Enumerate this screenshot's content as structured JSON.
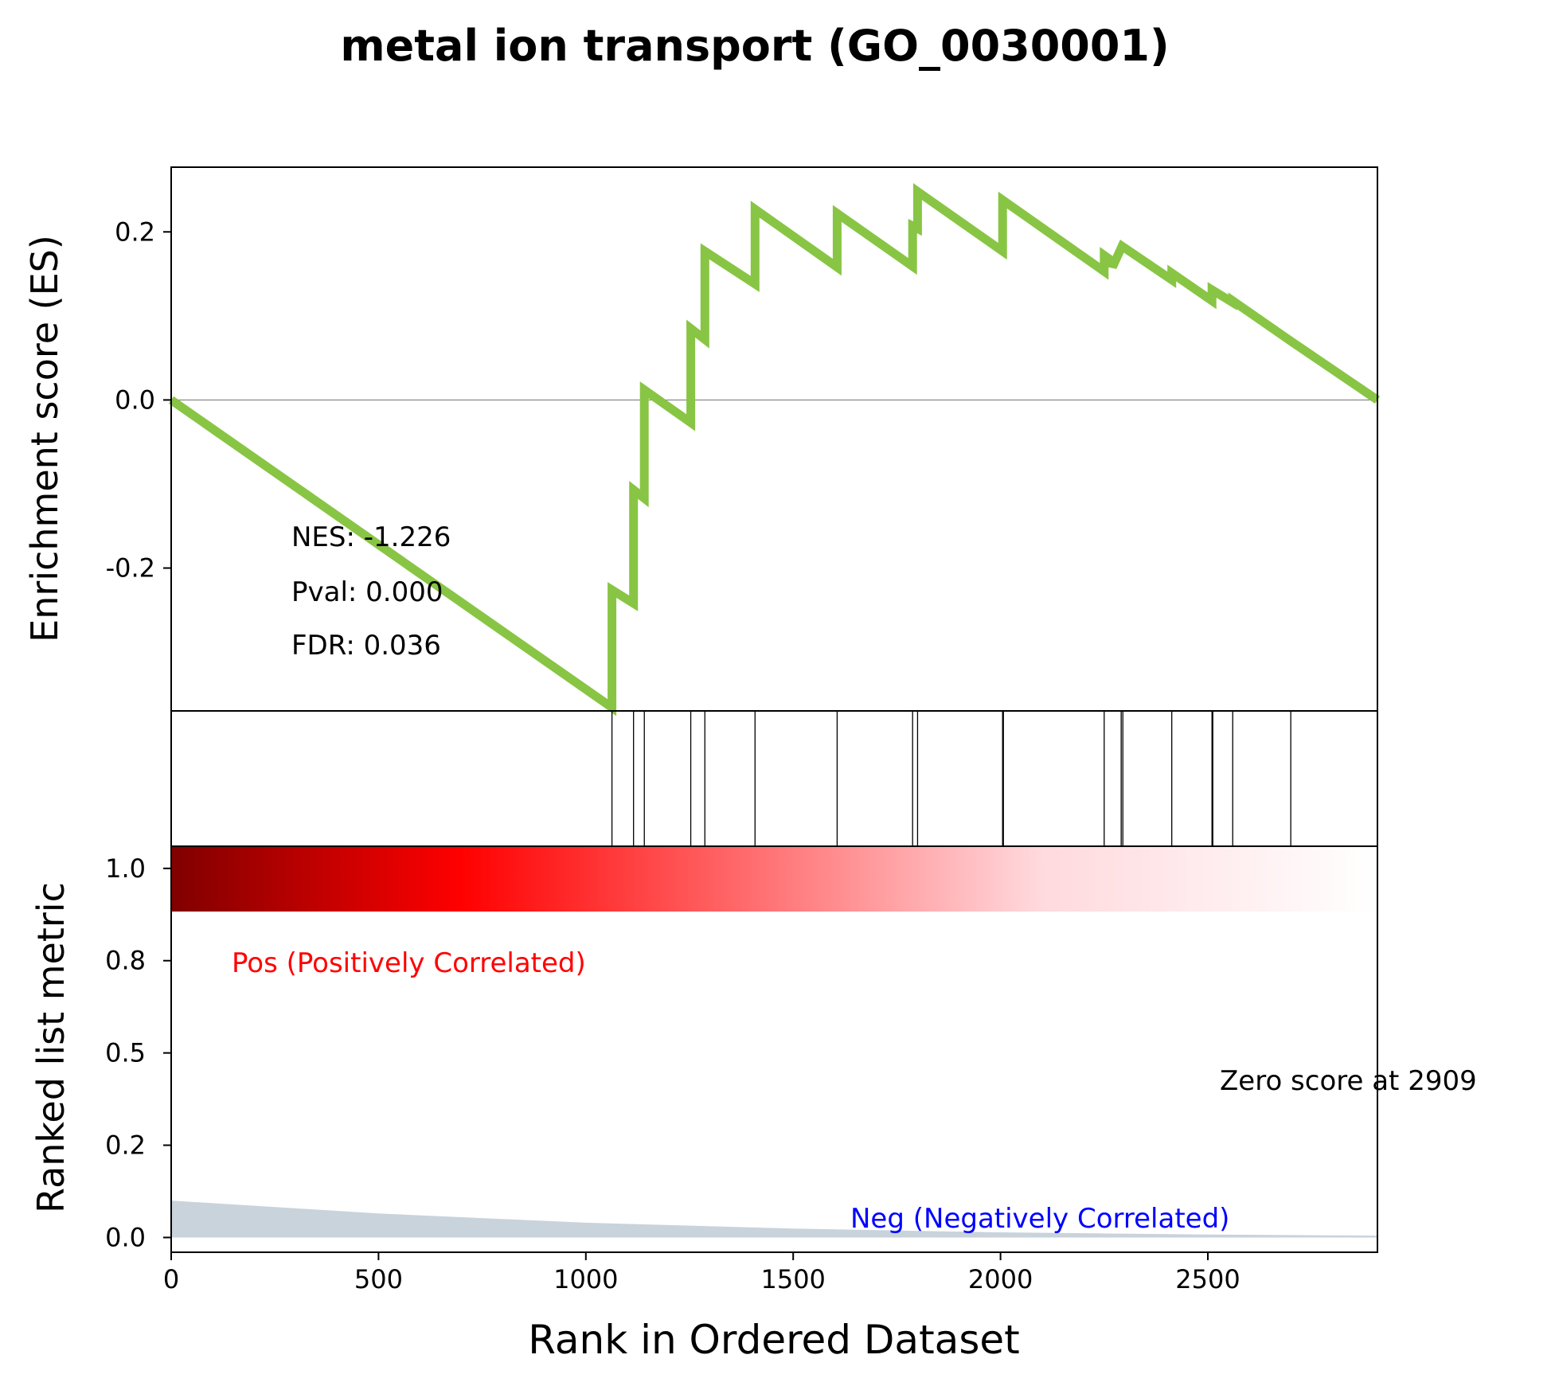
{
  "colors": {
    "es_line": "#88C544",
    "zero_line": "#808080",
    "hit_line": "#000000",
    "pos_label": "#FF0000",
    "neg_label": "#0000FF",
    "metric_fill": "#C9D3DB",
    "heat_dark": "#800000",
    "heat_red": "#FF0000",
    "heat_white": "#FFFFFF"
  },
  "chart_data": {
    "type": "line",
    "title": "metal ion transport (GO_0030001)",
    "xlabel": "Rank in Ordered Dataset",
    "xlim": [
      0,
      2909
    ],
    "xticks": [
      "0",
      "500",
      "1000",
      "1500",
      "2000",
      "2500"
    ],
    "es_panel": {
      "ylabel": "Enrichment score (ES)",
      "ylim": [
        -0.37,
        0.277
      ],
      "yticks": [
        "0.2",
        "0.0",
        "-0.2"
      ],
      "series": [
        {
          "x": [
            0,
            1063,
            1063,
            1115,
            1115,
            1141,
            1141,
            1253,
            1253,
            1287,
            1287,
            1408,
            1408,
            1606,
            1606,
            1788,
            1788,
            1800,
            1800,
            2005,
            2005,
            2250,
            2250,
            2270,
            2270,
            2293,
            2293,
            2413,
            2413,
            2510,
            2510,
            2560,
            2560,
            2700,
            2909
          ],
          "y": [
            0.0,
            -0.366,
            -0.226,
            -0.242,
            -0.107,
            -0.117,
            0.012,
            -0.027,
            0.085,
            0.072,
            0.177,
            0.138,
            0.227,
            0.158,
            0.222,
            0.159,
            0.207,
            0.204,
            0.248,
            0.177,
            0.238,
            0.153,
            0.172,
            0.165,
            0.158,
            0.183,
            0.183,
            0.143,
            0.151,
            0.118,
            0.131,
            0.116,
            0.118,
            0.07,
            0.0
          ]
        }
      ],
      "annotations": [
        "NES: -1.226",
        "Pval: 0.000",
        "FDR: 0.036"
      ]
    },
    "hits_panel": {
      "hit_ranks": [
        1063,
        1115,
        1141,
        1253,
        1287,
        1408,
        1606,
        1788,
        1800,
        2005,
        2007,
        2250,
        2291,
        2295,
        2413,
        2510,
        2512,
        2560,
        2700
      ]
    },
    "metric_panel": {
      "ylabel": "Ranked list metric",
      "ylim": [
        -0.04,
        1.06
      ],
      "yticks": [
        "1.0",
        "0.8",
        "0.5",
        "0.2",
        "0.0"
      ],
      "ytick_values": [
        1.0,
        0.75,
        0.5,
        0.25,
        0.0
      ],
      "x": [
        0,
        500,
        1000,
        1500,
        2000,
        2500,
        2909
      ],
      "y": [
        0.1,
        0.065,
        0.04,
        0.024,
        0.014,
        0.008,
        0.005
      ],
      "pos_label": "Pos (Positively Correlated)",
      "neg_label": "Neg (Negatively Correlated)",
      "zero_label": "Zero score at 2909"
    }
  }
}
